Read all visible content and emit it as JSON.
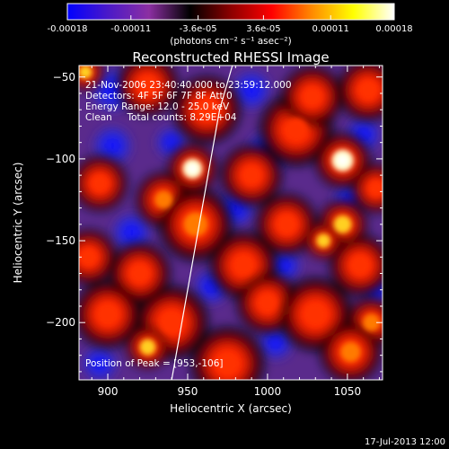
{
  "colorbar": {
    "ticks": [
      "-0.00018",
      "-0.00011",
      "-3.6e-05",
      "3.6e-05",
      "0.00011",
      "0.00018"
    ],
    "unit_label": "(photons cm⁻² s⁻¹ asec⁻²)",
    "range": [
      -0.00018,
      0.00018
    ],
    "colors": [
      "#0000ff",
      "#4b19c8",
      "#8c2fa2",
      "#000000",
      "#8c0000",
      "#ff0000",
      "#ff8c00",
      "#ffff00",
      "#ffffff"
    ]
  },
  "chart_data": {
    "type": "heatmap",
    "title": "Reconstructed RHESSI Image",
    "xlabel": "Heliocentric X (arcsec)",
    "ylabel": "Heliocentric Y (arcsec)",
    "xlim": [
      882,
      1072
    ],
    "ylim": [
      -235,
      -43
    ],
    "x_ticks": [
      900,
      950,
      1000,
      1050
    ],
    "y_ticks": [
      -50,
      -100,
      -150,
      -200
    ],
    "annotations": [
      "21-Nov-2006 23:40:40.000 to 23:59:12.000",
      "Detectors: 4F 5F 6F 7F 8F  Att 0",
      "Energy Range: 12.0 - 25.0 keV",
      "Clean     Total counts: 8.29E+04"
    ],
    "peak_label": "Position of Peak = [953,-106]",
    "peak": [
      953,
      -106
    ],
    "limb_line": [
      [
        940,
        -235
      ],
      [
        970,
        -70
      ],
      [
        978,
        -43
      ]
    ],
    "sources": [
      {
        "x": 953,
        "y": -106,
        "v": 1.0,
        "r": 8
      },
      {
        "x": 1047,
        "y": -101,
        "v": 0.95,
        "r": 9
      },
      {
        "x": 1018,
        "y": -82,
        "v": 0.55,
        "r": 12
      },
      {
        "x": 1028,
        "y": -62,
        "v": 0.45,
        "r": 10
      },
      {
        "x": 1063,
        "y": -58,
        "v": 0.5,
        "r": 10
      },
      {
        "x": 886,
        "y": -47,
        "v": 0.8,
        "r": 6
      },
      {
        "x": 925,
        "y": -55,
        "v": 0.4,
        "r": 10
      },
      {
        "x": 962,
        "y": -70,
        "v": 0.55,
        "r": 11
      },
      {
        "x": 895,
        "y": -115,
        "v": 0.5,
        "r": 9
      },
      {
        "x": 935,
        "y": -125,
        "v": 0.6,
        "r": 9
      },
      {
        "x": 955,
        "y": -140,
        "v": 0.6,
        "r": 12
      },
      {
        "x": 920,
        "y": -170,
        "v": 0.5,
        "r": 10
      },
      {
        "x": 900,
        "y": -195,
        "v": 0.55,
        "r": 11
      },
      {
        "x": 940,
        "y": -200,
        "v": 0.55,
        "r": 12
      },
      {
        "x": 925,
        "y": -215,
        "v": 0.85,
        "r": 7
      },
      {
        "x": 985,
        "y": -165,
        "v": 0.5,
        "r": 11
      },
      {
        "x": 1000,
        "y": -188,
        "v": 0.5,
        "r": 10
      },
      {
        "x": 1012,
        "y": -140,
        "v": 0.55,
        "r": 10
      },
      {
        "x": 1047,
        "y": -140,
        "v": 0.8,
        "r": 8
      },
      {
        "x": 1035,
        "y": -150,
        "v": 0.9,
        "r": 6
      },
      {
        "x": 1058,
        "y": -165,
        "v": 0.55,
        "r": 10
      },
      {
        "x": 1030,
        "y": -195,
        "v": 0.55,
        "r": 12
      },
      {
        "x": 1065,
        "y": -200,
        "v": 0.75,
        "r": 8
      },
      {
        "x": 1052,
        "y": -218,
        "v": 0.6,
        "r": 10
      },
      {
        "x": 975,
        "y": -225,
        "v": 0.5,
        "r": 12
      },
      {
        "x": 990,
        "y": -110,
        "v": 0.45,
        "r": 10
      },
      {
        "x": 888,
        "y": -160,
        "v": 0.5,
        "r": 9
      },
      {
        "x": 1068,
        "y": -118,
        "v": 0.5,
        "r": 8
      }
    ],
    "cool_spots": [
      {
        "x": 903,
        "y": -58,
        "r": 11
      },
      {
        "x": 990,
        "y": -58,
        "r": 10
      },
      {
        "x": 903,
        "y": -92,
        "r": 10
      },
      {
        "x": 1000,
        "y": -96,
        "r": 11
      },
      {
        "x": 1060,
        "y": -85,
        "r": 9
      },
      {
        "x": 915,
        "y": -145,
        "r": 10
      },
      {
        "x": 980,
        "y": -130,
        "r": 10
      },
      {
        "x": 1052,
        "y": -125,
        "r": 9
      },
      {
        "x": 965,
        "y": -178,
        "r": 9
      },
      {
        "x": 1010,
        "y": -165,
        "r": 9
      },
      {
        "x": 1068,
        "y": -180,
        "r": 8
      },
      {
        "x": 895,
        "y": -225,
        "r": 9
      },
      {
        "x": 1005,
        "y": -212,
        "r": 9
      },
      {
        "x": 940,
        "y": -90,
        "r": 8
      }
    ]
  },
  "footer": {
    "timestamp": "17-Jul-2013 12:00"
  }
}
